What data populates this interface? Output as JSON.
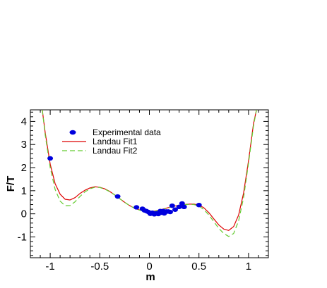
{
  "chart_data": {
    "type": "scatter",
    "title": "",
    "xlabel": "m",
    "ylabel": "F/T",
    "xlim": [
      -1.2,
      1.2
    ],
    "ylim": [
      -1.9,
      4.5
    ],
    "x_ticks": [
      -1,
      -0.5,
      0,
      0.5,
      1
    ],
    "x_tick_labels": [
      "-1",
      "-0.5",
      "0",
      "0.5",
      "1"
    ],
    "y_ticks": [
      -1,
      0,
      1,
      2,
      3,
      4
    ],
    "y_tick_labels": [
      "-1",
      "0",
      "1",
      "2",
      "3",
      "4"
    ],
    "grid": false,
    "legend_position": "upper-left",
    "series": [
      {
        "name": "Experimental data",
        "kind": "scatter",
        "color": "#0000dd",
        "x": [
          -1.0,
          -0.32,
          -0.13,
          -0.07,
          -0.05,
          -0.03,
          -0.01,
          0.01,
          0.03,
          0.05,
          0.07,
          0.09,
          0.11,
          0.12,
          0.14,
          0.15,
          0.17,
          0.19,
          0.21,
          0.23,
          0.26,
          0.3,
          0.33,
          0.35,
          0.5
        ],
        "y": [
          2.4,
          0.75,
          0.28,
          0.22,
          0.15,
          0.12,
          0.08,
          0.0,
          0.05,
          -0.02,
          0.02,
          -0.01,
          0.12,
          0.05,
          0.12,
          0.02,
          0.1,
          0.1,
          0.08,
          0.35,
          0.18,
          0.3,
          0.45,
          0.3,
          0.38
        ]
      },
      {
        "name": "Landau Fit1",
        "kind": "line",
        "color": "#dd0000",
        "x": [
          -1.08,
          -1.05,
          -1.0,
          -0.95,
          -0.9,
          -0.85,
          -0.8,
          -0.75,
          -0.7,
          -0.65,
          -0.6,
          -0.55,
          -0.5,
          -0.45,
          -0.4,
          -0.35,
          -0.3,
          -0.25,
          -0.2,
          -0.15,
          -0.1,
          -0.05,
          0.0,
          0.05,
          0.1,
          0.15,
          0.2,
          0.25,
          0.3,
          0.35,
          0.4,
          0.45,
          0.5,
          0.55,
          0.6,
          0.65,
          0.7,
          0.75,
          0.8,
          0.85,
          0.9,
          0.95,
          1.0,
          1.05,
          1.08
        ],
        "y": [
          4.5,
          3.5,
          2.15,
          1.3,
          0.85,
          0.63,
          0.6,
          0.7,
          0.88,
          1.02,
          1.12,
          1.17,
          1.15,
          1.08,
          0.97,
          0.82,
          0.66,
          0.5,
          0.36,
          0.24,
          0.17,
          0.12,
          0.1,
          0.12,
          0.16,
          0.22,
          0.28,
          0.33,
          0.37,
          0.4,
          0.42,
          0.42,
          0.38,
          0.26,
          0.05,
          -0.22,
          -0.48,
          -0.66,
          -0.72,
          -0.55,
          -0.05,
          0.9,
          2.3,
          3.9,
          4.5
        ]
      },
      {
        "name": "Landau Fit2",
        "kind": "line",
        "dashed": true,
        "color": "#66cc33",
        "x": [
          -1.08,
          -1.05,
          -1.0,
          -0.95,
          -0.9,
          -0.85,
          -0.8,
          -0.75,
          -0.7,
          -0.65,
          -0.6,
          -0.55,
          -0.5,
          -0.45,
          -0.4,
          -0.35,
          -0.3,
          -0.25,
          -0.2,
          -0.15,
          -0.1,
          -0.05,
          0.0,
          0.05,
          0.1,
          0.15,
          0.2,
          0.25,
          0.3,
          0.35,
          0.4,
          0.45,
          0.5,
          0.55,
          0.6,
          0.65,
          0.7,
          0.75,
          0.8,
          0.85,
          0.9,
          0.95,
          1.0,
          1.05,
          1.08
        ],
        "y": [
          4.5,
          3.4,
          2.0,
          1.05,
          0.55,
          0.35,
          0.36,
          0.52,
          0.75,
          0.95,
          1.08,
          1.15,
          1.14,
          1.07,
          0.96,
          0.82,
          0.66,
          0.5,
          0.36,
          0.24,
          0.16,
          0.11,
          0.09,
          0.11,
          0.15,
          0.21,
          0.27,
          0.32,
          0.36,
          0.39,
          0.41,
          0.4,
          0.34,
          0.18,
          -0.05,
          -0.34,
          -0.63,
          -0.85,
          -0.98,
          -0.85,
          -0.3,
          0.7,
          2.2,
          3.8,
          4.5
        ]
      }
    ]
  }
}
